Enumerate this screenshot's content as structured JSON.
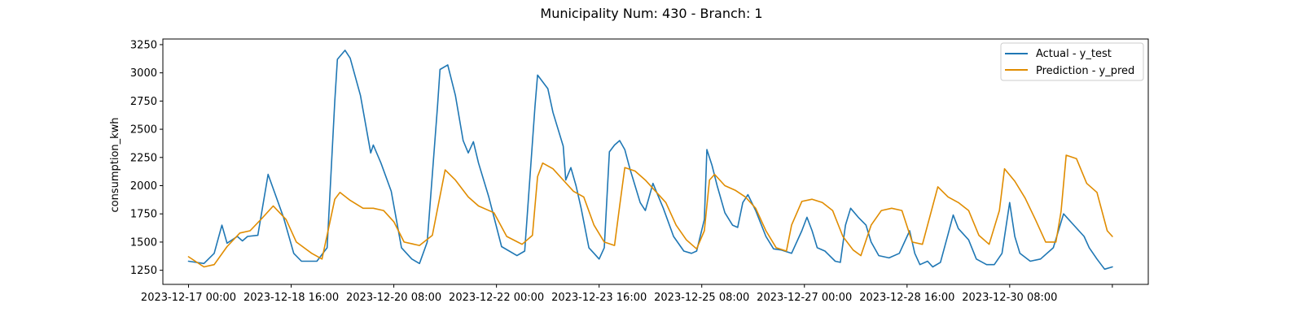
{
  "chart_data": {
    "type": "line",
    "title": "Municipality Num: 430 - Branch: 1",
    "xlabel": "",
    "ylabel": "consumption_kwh",
    "x_ticks": [
      "2023-12-17 00:00",
      "2023-12-18 16:00",
      "2023-12-20 08:00",
      "2023-12-22 00:00",
      "2023-12-23 16:00",
      "2023-12-25 08:00",
      "2023-12-27 00:00",
      "2023-12-28 16:00",
      "2023-12-30 08:00",
      ""
    ],
    "y_ticks": [
      1250,
      1500,
      1750,
      2000,
      2250,
      2500,
      2750,
      3000,
      3250
    ],
    "ylim": [
      1125,
      3300
    ],
    "xlim": [
      "2023-12-16 14:00",
      "2024-01-01 14:00"
    ],
    "grid": false,
    "legend_position": "top-right",
    "series": [
      {
        "name": "Actual - y_test",
        "color": "#1f77b4",
        "points": [
          [
            "2023-12-17 00:00",
            1330
          ],
          [
            "2023-12-17 06:00",
            1310
          ],
          [
            "2023-12-17 10:00",
            1400
          ],
          [
            "2023-12-17 13:00",
            1650
          ],
          [
            "2023-12-17 15:00",
            1490
          ],
          [
            "2023-12-17 19:00",
            1550
          ],
          [
            "2023-12-17 21:00",
            1510
          ],
          [
            "2023-12-17 23:00",
            1550
          ],
          [
            "2023-12-18 03:00",
            1560
          ],
          [
            "2023-12-18 07:00",
            2100
          ],
          [
            "2023-12-18 13:00",
            1720
          ],
          [
            "2023-12-18 17:00",
            1400
          ],
          [
            "2023-12-18 20:00",
            1330
          ],
          [
            "2023-12-19 02:00",
            1330
          ],
          [
            "2023-12-19 06:00",
            1450
          ],
          [
            "2023-12-19 09:00",
            2750
          ],
          [
            "2023-12-19 10:00",
            3120
          ],
          [
            "2023-12-19 13:00",
            3200
          ],
          [
            "2023-12-19 15:00",
            3130
          ],
          [
            "2023-12-19 19:00",
            2800
          ],
          [
            "2023-12-19 23:00",
            2290
          ],
          [
            "2023-12-20 00:00",
            2360
          ],
          [
            "2023-12-20 03:00",
            2200
          ],
          [
            "2023-12-20 07:00",
            1950
          ],
          [
            "2023-12-20 11:00",
            1450
          ],
          [
            "2023-12-20 15:00",
            1350
          ],
          [
            "2023-12-20 18:00",
            1310
          ],
          [
            "2023-12-20 21:00",
            1500
          ],
          [
            "2023-12-21 01:00",
            2700
          ],
          [
            "2023-12-21 02:00",
            3030
          ],
          [
            "2023-12-21 05:00",
            3070
          ],
          [
            "2023-12-21 08:00",
            2800
          ],
          [
            "2023-12-21 11:00",
            2400
          ],
          [
            "2023-12-21 13:00",
            2290
          ],
          [
            "2023-12-21 15:00",
            2390
          ],
          [
            "2023-12-21 17:00",
            2200
          ],
          [
            "2023-12-21 21:00",
            1900
          ],
          [
            "2023-12-22 02:00",
            1460
          ],
          [
            "2023-12-22 08:00",
            1380
          ],
          [
            "2023-12-22 11:00",
            1420
          ],
          [
            "2023-12-22 15:00",
            2700
          ],
          [
            "2023-12-22 16:00",
            2980
          ],
          [
            "2023-12-22 20:00",
            2860
          ],
          [
            "2023-12-22 22:00",
            2650
          ],
          [
            "2023-12-23 02:00",
            2350
          ],
          [
            "2023-12-23 03:00",
            2050
          ],
          [
            "2023-12-23 05:00",
            2160
          ],
          [
            "2023-12-23 07:00",
            2000
          ],
          [
            "2023-12-23 09:00",
            1800
          ],
          [
            "2023-12-23 12:00",
            1450
          ],
          [
            "2023-12-23 14:00",
            1400
          ],
          [
            "2023-12-23 16:00",
            1350
          ],
          [
            "2023-12-23 18:00",
            1450
          ],
          [
            "2023-12-23 20:00",
            2300
          ],
          [
            "2023-12-23 22:00",
            2360
          ],
          [
            "2023-12-24 00:00",
            2400
          ],
          [
            "2023-12-24 02:00",
            2320
          ],
          [
            "2023-12-24 04:00",
            2150
          ],
          [
            "2023-12-24 06:00",
            2000
          ],
          [
            "2023-12-24 08:00",
            1850
          ],
          [
            "2023-12-24 10:00",
            1780
          ],
          [
            "2023-12-24 13:00",
            2020
          ],
          [
            "2023-12-24 17:00",
            1800
          ],
          [
            "2023-12-24 21:00",
            1550
          ],
          [
            "2023-12-25 01:00",
            1420
          ],
          [
            "2023-12-25 04:00",
            1400
          ],
          [
            "2023-12-25 06:00",
            1420
          ],
          [
            "2023-12-25 09:00",
            1700
          ],
          [
            "2023-12-25 10:00",
            2320
          ],
          [
            "2023-12-25 12:00",
            2180
          ],
          [
            "2023-12-25 14:00",
            2000
          ],
          [
            "2023-12-25 17:00",
            1760
          ],
          [
            "2023-12-25 20:00",
            1650
          ],
          [
            "2023-12-25 22:00",
            1630
          ],
          [
            "2023-12-26 00:00",
            1850
          ],
          [
            "2023-12-26 02:00",
            1920
          ],
          [
            "2023-12-26 05:00",
            1780
          ],
          [
            "2023-12-26 09:00",
            1550
          ],
          [
            "2023-12-26 12:00",
            1440
          ],
          [
            "2023-12-26 15:00",
            1430
          ],
          [
            "2023-12-26 19:00",
            1400
          ],
          [
            "2023-12-26 23:00",
            1600
          ],
          [
            "2023-12-27 01:00",
            1720
          ],
          [
            "2023-12-27 03:00",
            1600
          ],
          [
            "2023-12-27 05:00",
            1450
          ],
          [
            "2023-12-27 08:00",
            1420
          ],
          [
            "2023-12-27 12:00",
            1330
          ],
          [
            "2023-12-27 14:00",
            1320
          ],
          [
            "2023-12-27 16:00",
            1650
          ],
          [
            "2023-12-27 18:00",
            1800
          ],
          [
            "2023-12-27 21:00",
            1720
          ],
          [
            "2023-12-28 00:00",
            1650
          ],
          [
            "2023-12-28 02:00",
            1500
          ],
          [
            "2023-12-28 05:00",
            1380
          ],
          [
            "2023-12-28 09:00",
            1360
          ],
          [
            "2023-12-28 13:00",
            1400
          ],
          [
            "2023-12-28 17:00",
            1600
          ],
          [
            "2023-12-28 19:00",
            1400
          ],
          [
            "2023-12-28 21:00",
            1300
          ],
          [
            "2023-12-29 00:00",
            1330
          ],
          [
            "2023-12-29 02:00",
            1280
          ],
          [
            "2023-12-29 05:00",
            1320
          ],
          [
            "2023-12-29 08:00",
            1570
          ],
          [
            "2023-12-29 10:00",
            1740
          ],
          [
            "2023-12-29 12:00",
            1620
          ],
          [
            "2023-12-29 16:00",
            1520
          ],
          [
            "2023-12-29 19:00",
            1350
          ],
          [
            "2023-12-29 23:00",
            1300
          ],
          [
            "2023-12-30 02:00",
            1300
          ],
          [
            "2023-12-30 05:00",
            1400
          ],
          [
            "2023-12-30 08:00",
            1850
          ],
          [
            "2023-12-30 10:00",
            1550
          ],
          [
            "2023-12-30 12:00",
            1400
          ],
          [
            "2023-12-30 16:00",
            1330
          ],
          [
            "2023-12-30 20:00",
            1350
          ],
          [
            "2023-12-31 01:00",
            1450
          ],
          [
            "2023-12-31 05:00",
            1750
          ],
          [
            "2023-12-31 09:00",
            1650
          ],
          [
            "2023-12-31 13:00",
            1550
          ],
          [
            "2023-12-31 15:00",
            1450
          ],
          [
            "2023-12-31 18:00",
            1350
          ],
          [
            "2023-12-31 21:00",
            1260
          ],
          [
            "2024-01-01 00:00",
            1280
          ]
        ]
      },
      {
        "name": "Prediction - y_pred",
        "color": "#e08c00",
        "points": [
          [
            "2023-12-17 00:00",
            1370
          ],
          [
            "2023-12-17 06:00",
            1280
          ],
          [
            "2023-12-17 10:00",
            1300
          ],
          [
            "2023-12-17 15:00",
            1460
          ],
          [
            "2023-12-17 20:00",
            1580
          ],
          [
            "2023-12-18 00:00",
            1600
          ],
          [
            "2023-12-18 05:00",
            1720
          ],
          [
            "2023-12-18 09:00",
            1820
          ],
          [
            "2023-12-18 14:00",
            1700
          ],
          [
            "2023-12-18 18:00",
            1500
          ],
          [
            "2023-12-19 00:00",
            1400
          ],
          [
            "2023-12-19 04:00",
            1350
          ],
          [
            "2023-12-19 09:00",
            1880
          ],
          [
            "2023-12-19 11:00",
            1940
          ],
          [
            "2023-12-19 15:00",
            1870
          ],
          [
            "2023-12-19 20:00",
            1800
          ],
          [
            "2023-12-20 00:00",
            1800
          ],
          [
            "2023-12-20 04:00",
            1780
          ],
          [
            "2023-12-20 08:00",
            1680
          ],
          [
            "2023-12-20 12:00",
            1500
          ],
          [
            "2023-12-20 18:00",
            1470
          ],
          [
            "2023-12-20 23:00",
            1560
          ],
          [
            "2023-12-21 04:00",
            2140
          ],
          [
            "2023-12-21 08:00",
            2050
          ],
          [
            "2023-12-21 13:00",
            1900
          ],
          [
            "2023-12-21 17:00",
            1820
          ],
          [
            "2023-12-21 23:00",
            1760
          ],
          [
            "2023-12-22 04:00",
            1550
          ],
          [
            "2023-12-22 10:00",
            1480
          ],
          [
            "2023-12-22 14:00",
            1560
          ],
          [
            "2023-12-22 16:00",
            2080
          ],
          [
            "2023-12-22 18:00",
            2200
          ],
          [
            "2023-12-22 22:00",
            2150
          ],
          [
            "2023-12-23 02:00",
            2050
          ],
          [
            "2023-12-23 06:00",
            1950
          ],
          [
            "2023-12-23 10:00",
            1900
          ],
          [
            "2023-12-23 14:00",
            1650
          ],
          [
            "2023-12-23 18:00",
            1500
          ],
          [
            "2023-12-23 22:00",
            1470
          ],
          [
            "2023-12-24 00:00",
            1820
          ],
          [
            "2023-12-24 02:00",
            2160
          ],
          [
            "2023-12-24 06:00",
            2130
          ],
          [
            "2023-12-24 10:00",
            2050
          ],
          [
            "2023-12-24 14:00",
            1950
          ],
          [
            "2023-12-24 18:00",
            1850
          ],
          [
            "2023-12-24 22:00",
            1650
          ],
          [
            "2023-12-25 02:00",
            1520
          ],
          [
            "2023-12-25 06:00",
            1440
          ],
          [
            "2023-12-25 09:00",
            1600
          ],
          [
            "2023-12-25 11:00",
            2050
          ],
          [
            "2023-12-25 13:00",
            2100
          ],
          [
            "2023-12-25 17:00",
            2000
          ],
          [
            "2023-12-25 21:00",
            1960
          ],
          [
            "2023-12-26 01:00",
            1900
          ],
          [
            "2023-12-26 05:00",
            1800
          ],
          [
            "2023-12-26 09:00",
            1600
          ],
          [
            "2023-12-26 13:00",
            1450
          ],
          [
            "2023-12-26 17:00",
            1420
          ],
          [
            "2023-12-26 19:00",
            1650
          ],
          [
            "2023-12-26 23:00",
            1860
          ],
          [
            "2023-12-27 03:00",
            1880
          ],
          [
            "2023-12-27 07:00",
            1850
          ],
          [
            "2023-12-27 11:00",
            1780
          ],
          [
            "2023-12-27 15:00",
            1550
          ],
          [
            "2023-12-27 19:00",
            1430
          ],
          [
            "2023-12-27 22:00",
            1380
          ],
          [
            "2023-12-28 02:00",
            1650
          ],
          [
            "2023-12-28 06:00",
            1780
          ],
          [
            "2023-12-28 10:00",
            1800
          ],
          [
            "2023-12-28 14:00",
            1780
          ],
          [
            "2023-12-28 18:00",
            1500
          ],
          [
            "2023-12-28 22:00",
            1480
          ],
          [
            "2023-12-29 02:00",
            1820
          ],
          [
            "2023-12-29 04:00",
            1990
          ],
          [
            "2023-12-29 08:00",
            1900
          ],
          [
            "2023-12-29 12:00",
            1850
          ],
          [
            "2023-12-29 16:00",
            1780
          ],
          [
            "2023-12-29 20:00",
            1560
          ],
          [
            "2023-12-30 00:00",
            1480
          ],
          [
            "2023-12-30 04:00",
            1780
          ],
          [
            "2023-12-30 06:00",
            2150
          ],
          [
            "2023-12-30 10:00",
            2040
          ],
          [
            "2023-12-30 14:00",
            1890
          ],
          [
            "2023-12-30 18:00",
            1700
          ],
          [
            "2023-12-30 22:00",
            1500
          ],
          [
            "2023-12-31 02:00",
            1500
          ],
          [
            "2023-12-31 04:00",
            1770
          ],
          [
            "2023-12-31 06:00",
            2270
          ],
          [
            "2023-12-31 10:00",
            2240
          ],
          [
            "2023-12-31 14:00",
            2020
          ],
          [
            "2023-12-31 18:00",
            1940
          ],
          [
            "2023-12-31 22:00",
            1600
          ],
          [
            "2024-01-01 00:00",
            1550
          ]
        ]
      }
    ]
  }
}
